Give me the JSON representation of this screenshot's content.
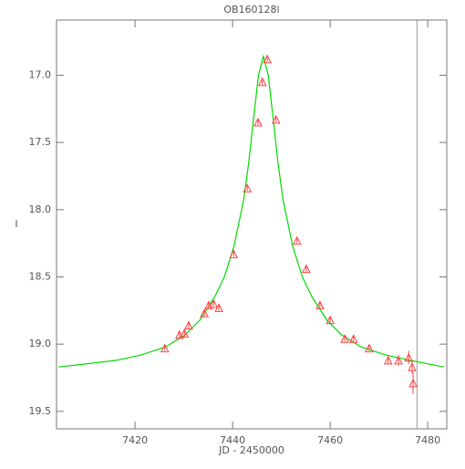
{
  "chart_data": {
    "type": "scatter",
    "title": "OB160128l",
    "x_label": "JD - 2450000",
    "y_label": "I",
    "xlim": [
      7403.9,
      7483.9
    ],
    "ylim": [
      16.59,
      19.63
    ],
    "y_inverted": true,
    "xticks": [
      7420,
      7440,
      7460,
      7480
    ],
    "yticks": [
      {
        "value": 17,
        "label": "17.0"
      },
      {
        "value": 17.5,
        "label": "17.5"
      },
      {
        "value": 18,
        "label": "18.0"
      },
      {
        "value": 18.5,
        "label": "18.5"
      },
      {
        "value": 19,
        "label": "19.0"
      },
      {
        "value": 19.5,
        "label": "19.5"
      }
    ],
    "vline": 7477.8,
    "vline_color": "#999999",
    "model": {
      "color": "#00dd00",
      "x": [
        7404.3,
        7409.3,
        7416.3,
        7421.3,
        7426.3,
        7430.3,
        7433.3,
        7436.3,
        7438.3,
        7440.3,
        7442.3,
        7443.3,
        7444.3,
        7445.3,
        7446.3,
        7447.3,
        7448.3,
        7449.3,
        7450.3,
        7452.3,
        7454.3,
        7456.3,
        7459.3,
        7462.3,
        7466.3,
        7471.3,
        7476.3,
        7483.3
      ],
      "values": [
        19.17,
        19.15,
        19.12,
        19.08,
        19.02,
        18.93,
        18.82,
        18.65,
        18.5,
        18.27,
        17.92,
        17.65,
        17.32,
        17.0,
        16.86,
        17.0,
        17.32,
        17.65,
        17.92,
        18.27,
        18.5,
        18.65,
        18.82,
        18.93,
        19.02,
        19.08,
        19.12,
        19.17
      ]
    },
    "observations": {
      "color": "#ff4040",
      "x": [
        7426.1,
        7429.1,
        7430.1,
        7431.0,
        7434.2,
        7435.1,
        7436.1,
        7437.2,
        7440.2,
        7443.0,
        7445.2,
        7446.1,
        7447.1,
        7448.9,
        7453.2,
        7455.1,
        7457.9,
        7460.0,
        7463.0,
        7464.8,
        7468.0,
        7471.9,
        7474.0,
        7476.1,
        7476.8,
        7477.0
      ],
      "values": [
        19.03,
        18.93,
        18.92,
        18.86,
        18.77,
        18.71,
        18.7,
        18.73,
        18.33,
        17.84,
        17.35,
        17.05,
        16.88,
        17.33,
        18.23,
        18.44,
        18.71,
        18.82,
        18.96,
        18.96,
        19.03,
        19.12,
        19.12,
        19.1,
        19.17,
        19.29
      ],
      "errors": [
        0.02,
        0.03,
        0.03,
        0.02,
        0.02,
        0.02,
        0.02,
        0.02,
        0.02,
        0.02,
        0.02,
        0.02,
        0.02,
        0.02,
        0.02,
        0.02,
        0.02,
        0.02,
        0.02,
        0.02,
        0.02,
        0.03,
        0.04,
        0.05,
        0.05,
        0.08
      ]
    }
  }
}
